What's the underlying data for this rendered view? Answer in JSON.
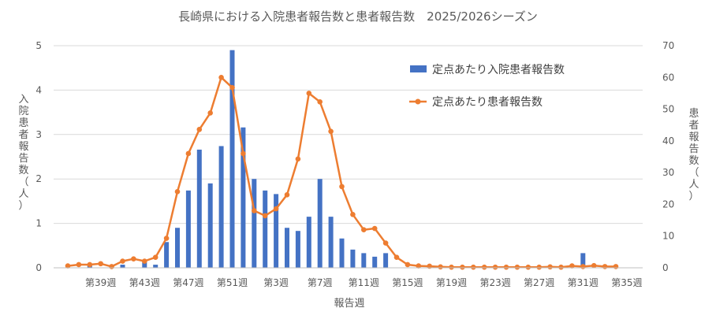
{
  "chart_data": {
    "type": "bar+line",
    "title": "長崎県における入院患者報告数と患者報告数　2025/2026シーズン",
    "xlabel": "報告週",
    "ylabel_left": "入院患者報告数（人）",
    "ylabel_right": "患者報告数（人）",
    "ylim_left": [
      0,
      5
    ],
    "ylim_right": [
      0,
      70
    ],
    "yticks_left": [
      "0",
      "1",
      "2",
      "3",
      "4",
      "5"
    ],
    "yticks_right": [
      "0",
      "10",
      "20",
      "30",
      "40",
      "50",
      "60",
      "70"
    ],
    "x_tick_labels": [
      "第39週",
      "第43週",
      "第47週",
      "第51週",
      "第3週",
      "第7週",
      "第11週",
      "第15週",
      "第19週",
      "第23週",
      "第27週",
      "第31週",
      "第35週"
    ],
    "legend_position": "top-right",
    "grid": true,
    "colors": {
      "bar": "#4472c4",
      "line": "#ed7d31"
    },
    "series": [
      {
        "name": "定点あたり入院患者報告数",
        "type": "bar",
        "axis": "left",
        "values": [
          0,
          0,
          0.07,
          0,
          0,
          0.07,
          0,
          0.15,
          0.07,
          0.58,
          0.9,
          1.74,
          2.66,
          1.9,
          2.74,
          4.9,
          3.16,
          2.0,
          1.74,
          1.66,
          0.9,
          0.83,
          1.15,
          2.0,
          1.15,
          0.66,
          0.41,
          0.33,
          0.25,
          0.33,
          0,
          0,
          0,
          0,
          0,
          0,
          0,
          0,
          0,
          0,
          0,
          0,
          0,
          0,
          0,
          0,
          0,
          0.33,
          0,
          0,
          0
        ]
      },
      {
        "name": "定点あたり患者報告数",
        "type": "line",
        "axis": "right",
        "values": [
          0.6,
          1.0,
          1.0,
          1.3,
          0.4,
          2.1,
          2.8,
          2.1,
          3.3,
          9.3,
          24.0,
          36.0,
          43.6,
          48.8,
          60.0,
          56.8,
          36.0,
          18.0,
          16.4,
          18.6,
          23.0,
          34.3,
          55.0,
          52.3,
          43.0,
          25.6,
          16.8,
          12.0,
          12.4,
          7.8,
          3.3,
          1.0,
          0.6,
          0.5,
          0.3,
          0.2,
          0.2,
          0.2,
          0.2,
          0.2,
          0.2,
          0.2,
          0.2,
          0.2,
          0.3,
          0.2,
          0.6,
          0.4,
          0.7,
          0.4,
          0.4
        ]
      }
    ]
  }
}
